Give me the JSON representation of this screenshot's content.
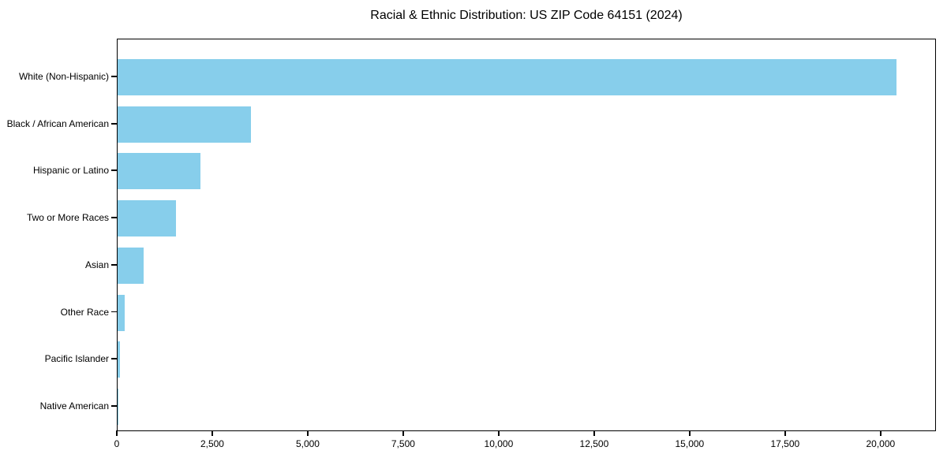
{
  "chart_data": {
    "type": "bar",
    "orientation": "horizontal",
    "title": "Racial & Ethnic Distribution: US ZIP Code 64151 (2024)",
    "categories": [
      "White (Non-Hispanic)",
      "Black / African American",
      "Hispanic or Latino",
      "Two or More Races",
      "Asian",
      "Other Race",
      "Pacific Islander",
      "Native American"
    ],
    "values": [
      20400,
      3500,
      2180,
      1520,
      680,
      190,
      70,
      20
    ],
    "xlabel": "",
    "ylabel": "",
    "xlim": [
      0,
      21450
    ],
    "x_ticks": [
      0,
      2500,
      5000,
      7500,
      10000,
      12500,
      15000,
      17500,
      20000
    ],
    "x_tick_labels": [
      "0",
      "2,500",
      "5,000",
      "7,500",
      "10,000",
      "12,500",
      "15,000",
      "17,500",
      "20,000"
    ],
    "bar_color": "#87CEEB",
    "axis_color": "#000000",
    "text_color": "#000000",
    "background_color": "#ffffff",
    "grid": false,
    "legend": false
  }
}
